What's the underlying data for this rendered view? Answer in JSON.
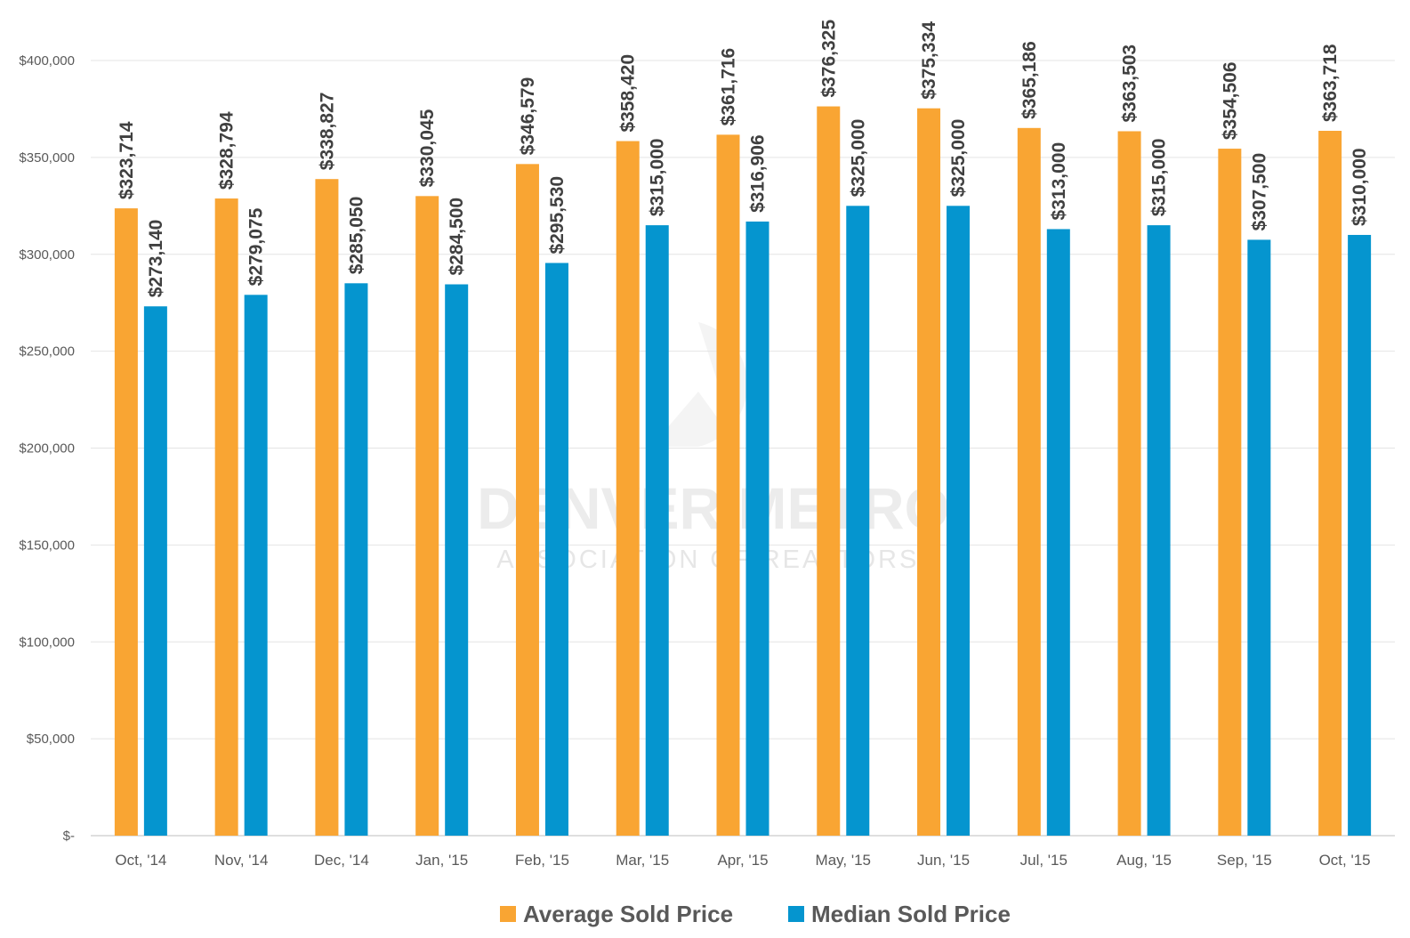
{
  "chart_data": {
    "type": "bar",
    "categories": [
      "Oct, '14",
      "Nov, '14",
      "Dec, '14",
      "Jan, '15",
      "Feb, '15",
      "Mar, '15",
      "Apr, '15",
      "May, '15",
      "Jun, '15",
      "Jul, '15",
      "Aug, '15",
      "Sep, '15",
      "Oct, '15"
    ],
    "series": [
      {
        "name": "Average Sold Price",
        "color": "#F9A533",
        "values": [
          323714,
          328794,
          338827,
          330045,
          346579,
          358420,
          361716,
          376325,
          375334,
          365186,
          363503,
          354506,
          363718
        ],
        "labels": [
          "$323,714",
          "$328,794",
          "$338,827",
          "$330,045",
          "$346,579",
          "$358,420",
          "$361,716",
          "$376,325",
          "$375,334",
          "$365,186",
          "$363,503",
          "$354,506",
          "$363,718"
        ]
      },
      {
        "name": "Median Sold Price",
        "color": "#0595CF",
        "values": [
          273140,
          279075,
          285050,
          284500,
          295530,
          315000,
          316906,
          325000,
          325000,
          313000,
          315000,
          307500,
          310000
        ],
        "labels": [
          "$273,140",
          "$279,075",
          "$285,050",
          "$284,500",
          "$295,530",
          "$315,000",
          "$316,906",
          "$325,000",
          "$325,000",
          "$313,000",
          "$315,000",
          "$307,500",
          "$310,000"
        ]
      }
    ],
    "ylim": [
      0,
      400000
    ],
    "yticks": [
      {
        "value": 0,
        "label": "$-"
      },
      {
        "value": 50000,
        "label": "$50,000"
      },
      {
        "value": 100000,
        "label": "$100,000"
      },
      {
        "value": 150000,
        "label": "$150,000"
      },
      {
        "value": 200000,
        "label": "$200,000"
      },
      {
        "value": 250000,
        "label": "$250,000"
      },
      {
        "value": 300000,
        "label": "$300,000"
      },
      {
        "value": 350000,
        "label": "$350,000"
      },
      {
        "value": 400000,
        "label": "$400,000"
      }
    ],
    "grid": true,
    "legend_position": "bottom",
    "title": "",
    "xlabel": "",
    "ylabel": ""
  },
  "watermark": {
    "line1": "DENVER METRO",
    "line2": "ASSOCIATION OF REALTORS®"
  }
}
